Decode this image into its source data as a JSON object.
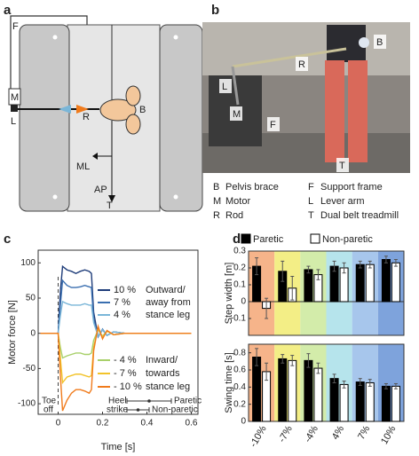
{
  "panel_letters": [
    "a",
    "b",
    "c",
    "d"
  ],
  "panel_a": {
    "labels": [
      "F",
      "M",
      "L",
      "R",
      "B",
      "ML",
      "AP",
      "T"
    ]
  },
  "panel_b": {
    "photo_labels": [
      "B",
      "R",
      "L",
      "M",
      "F",
      "T"
    ],
    "legend": [
      {
        "key": "B",
        "text": "Pelvis brace"
      },
      {
        "key": "M",
        "text": "Motor"
      },
      {
        "key": "R",
        "text": "Rod"
      },
      {
        "key": "F",
        "text": "Support frame"
      },
      {
        "key": "L",
        "text": "Lever arm"
      },
      {
        "key": "T",
        "text": "Dual belt treadmill"
      }
    ]
  },
  "chart_data": [
    {
      "type": "line",
      "x_label": "Time [s]",
      "y_label": "Motor force [N]",
      "x": [
        -0.08,
        -0.04,
        0,
        0.01,
        0.02,
        0.04,
        0.06,
        0.08,
        0.1,
        0.12,
        0.14,
        0.15,
        0.16,
        0.18,
        0.2,
        0.22,
        0.25,
        0.3,
        0.4,
        0.5,
        0.6
      ],
      "series": [
        {
          "name": "10 %",
          "color": "#1f3d7a",
          "values": [
            0,
            0,
            0,
            60,
            95,
            90,
            88,
            85,
            88,
            90,
            88,
            85,
            30,
            -5,
            5,
            -3,
            2,
            0,
            0,
            0,
            0
          ]
        },
        {
          "name": "7 %",
          "color": "#3a6fb0",
          "values": [
            0,
            0,
            0,
            40,
            75,
            68,
            65,
            65,
            66,
            68,
            66,
            65,
            20,
            -5,
            6,
            -3,
            2,
            0,
            0,
            0,
            0
          ]
        },
        {
          "name": "4 %",
          "color": "#7ab6d8",
          "values": [
            0,
            0,
            0,
            25,
            45,
            42,
            40,
            40,
            40,
            42,
            40,
            40,
            15,
            -4,
            5,
            -3,
            2,
            0,
            0,
            0,
            0
          ]
        },
        {
          "name": "- 4 %",
          "color": "#a8d06a",
          "values": [
            0,
            0,
            0,
            -20,
            -35,
            -32,
            -30,
            -28,
            -28,
            -30,
            -30,
            -28,
            -10,
            5,
            -4,
            3,
            -2,
            0,
            0,
            0,
            0
          ]
        },
        {
          "name": "- 7 %",
          "color": "#f2c32a",
          "values": [
            0,
            0,
            0,
            -35,
            -70,
            -62,
            -60,
            -58,
            -58,
            -60,
            -62,
            -60,
            -20,
            8,
            -6,
            3,
            -2,
            0,
            0,
            0,
            0
          ]
        },
        {
          "name": "- 10 %",
          "color": "#f07b1c",
          "values": [
            0,
            0,
            0,
            -60,
            -110,
            -95,
            -85,
            -80,
            -80,
            -82,
            -85,
            -80,
            -25,
            10,
            -8,
            4,
            -2,
            0,
            0,
            0,
            0
          ]
        }
      ],
      "xlim": [
        -0.09,
        0.63
      ],
      "xticks": [
        0,
        0.2,
        0.4,
        0.6
      ],
      "ylim": [
        -115,
        118
      ],
      "yticks": [
        -100,
        -50,
        0,
        50,
        100
      ],
      "legend_groups": [
        [
          "Outward/",
          "away from",
          "stance leg"
        ],
        [
          "Inward/",
          "towards",
          "stance leg"
        ]
      ],
      "toe_off": [
        "Toe",
        "off"
      ],
      "heel_strike": [
        "Heel",
        "strike"
      ],
      "heel_strike_bars": [
        {
          "name": "Paretic",
          "value": 0.41,
          "error": 0.1
        },
        {
          "name": "Non-paretic",
          "value": 0.36,
          "error": 0.05
        }
      ]
    },
    {
      "type": "bar",
      "y_label": "Step width [m]",
      "band_colors": [
        "#f6b48a",
        "#f3ee86",
        "#d3ecaa",
        "#b6e4ec",
        "#a7c6ec",
        "#7ea3dc"
      ],
      "ylim": [
        -0.2,
        0.3
      ],
      "yticks": [
        -0.1,
        0,
        0.1,
        0.2,
        0.3
      ],
      "series": [
        {
          "name": "Paretic",
          "color": "#000000",
          "values": [
            0.21,
            0.18,
            0.19,
            0.21,
            0.22,
            0.25
          ],
          "errors": [
            0.05,
            0.06,
            0.02,
            0.03,
            0.02,
            0.02
          ]
        },
        {
          "name": "Non-paretic",
          "color": "#ffffff",
          "values": [
            -0.04,
            0.08,
            0.16,
            0.2,
            0.22,
            0.23
          ],
          "errors": [
            0.06,
            0.07,
            0.03,
            0.03,
            0.02,
            0.02
          ]
        }
      ]
    },
    {
      "type": "bar",
      "y_label": "Swing time [s]",
      "categories": [
        "-10%",
        "-7%",
        "-4%",
        "4%",
        "7%",
        "10%"
      ],
      "band_colors": [
        "#f6b48a",
        "#f3ee86",
        "#d3ecaa",
        "#b6e4ec",
        "#a7c6ec",
        "#7ea3dc"
      ],
      "ylim": [
        0,
        0.9
      ],
      "yticks": [
        0,
        0.2,
        0.4,
        0.6,
        0.8
      ],
      "series": [
        {
          "name": "Paretic",
          "color": "#000000",
          "values": [
            0.75,
            0.73,
            0.71,
            0.5,
            0.46,
            0.41
          ],
          "errors": [
            0.1,
            0.05,
            0.08,
            0.05,
            0.04,
            0.03
          ]
        },
        {
          "name": "Non-paretic",
          "color": "#ffffff",
          "values": [
            0.58,
            0.71,
            0.62,
            0.43,
            0.45,
            0.41
          ],
          "errors": [
            0.1,
            0.06,
            0.06,
            0.04,
            0.04,
            0.03
          ]
        }
      ]
    }
  ]
}
